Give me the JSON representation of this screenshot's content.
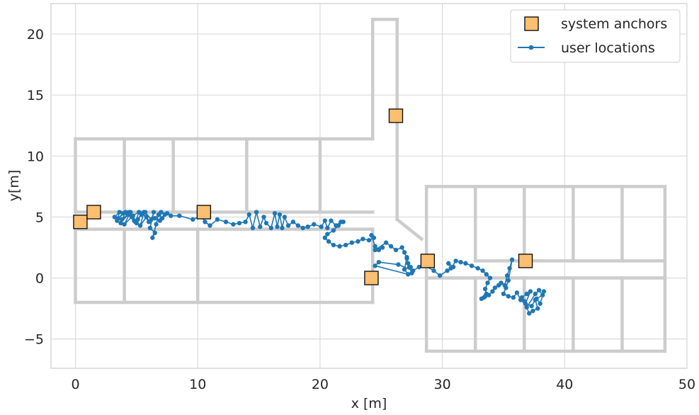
{
  "chart_data": {
    "type": "scatter",
    "xlabel": "x [m]",
    "ylabel": "y[m]",
    "xlim": [
      -2,
      50
    ],
    "ylim": [
      -7.4,
      22.5
    ],
    "xticks": [
      0,
      10,
      20,
      30,
      40,
      50
    ],
    "yticks": [
      -5,
      0,
      5,
      10,
      15,
      20
    ],
    "xtick_labels": [
      "0",
      "10",
      "20",
      "30",
      "40",
      "50"
    ],
    "ytick_labels": [
      "−5",
      "0",
      "5",
      "10",
      "15",
      "20"
    ],
    "grid": true,
    "legend": {
      "position": "top-right",
      "entries": [
        {
          "label": "system anchors",
          "marker": "square",
          "color": "#fdbf6f"
        },
        {
          "label": "user locations",
          "marker": "line-dot",
          "color": "#1f77b4"
        }
      ]
    },
    "colors": {
      "anchors": "#fdbf6f",
      "anchor_edge": "#111111",
      "user": "#1f77b4",
      "walls": "#cccccc",
      "grid": "#dadada"
    },
    "walls": [
      [
        [
          0,
          11.4
        ],
        [
          24.3,
          11.4
        ]
      ],
      [
        [
          24.3,
          11.4
        ],
        [
          24.3,
          21.2
        ]
      ],
      [
        [
          24.3,
          21.2
        ],
        [
          26.3,
          21.2
        ]
      ],
      [
        [
          26.3,
          21.2
        ],
        [
          26.3,
          4.8
        ]
      ],
      [
        [
          26.3,
          4.8
        ],
        [
          28.3,
          3.2
        ]
      ],
      [
        [
          0,
          11.4
        ],
        [
          0,
          5.4
        ]
      ],
      [
        [
          0,
          5.4
        ],
        [
          24.3,
          5.4
        ]
      ],
      [
        [
          4,
          11.4
        ],
        [
          4,
          5.4
        ]
      ],
      [
        [
          8,
          11.4
        ],
        [
          8,
          5.4
        ]
      ],
      [
        [
          14,
          11.4
        ],
        [
          14,
          5.4
        ]
      ],
      [
        [
          20,
          11.4
        ],
        [
          20,
          5.4
        ]
      ],
      [
        [
          0,
          4
        ],
        [
          24.3,
          4
        ]
      ],
      [
        [
          24.3,
          4
        ],
        [
          24.3,
          -2
        ]
      ],
      [
        [
          0,
          4
        ],
        [
          0,
          -2
        ]
      ],
      [
        [
          0,
          -2
        ],
        [
          24.3,
          -2
        ]
      ],
      [
        [
          4,
          4
        ],
        [
          4,
          -2
        ]
      ],
      [
        [
          10,
          4
        ],
        [
          10,
          -2
        ]
      ],
      [
        [
          28.7,
          7.5
        ],
        [
          48.2,
          7.5
        ]
      ],
      [
        [
          28.7,
          7.5
        ],
        [
          28.7,
          -6
        ]
      ],
      [
        [
          48.2,
          7.5
        ],
        [
          48.2,
          -6
        ]
      ],
      [
        [
          28.7,
          -6
        ],
        [
          48.2,
          -6
        ]
      ],
      [
        [
          32.7,
          7.5
        ],
        [
          32.7,
          1.4
        ]
      ],
      [
        [
          36.7,
          7.5
        ],
        [
          36.7,
          1.4
        ]
      ],
      [
        [
          40.7,
          7.5
        ],
        [
          40.7,
          1.4
        ]
      ],
      [
        [
          44.7,
          7.5
        ],
        [
          44.7,
          1.4
        ]
      ],
      [
        [
          32.7,
          1.4
        ],
        [
          48.2,
          1.4
        ]
      ],
      [
        [
          28.7,
          0
        ],
        [
          48.2,
          0
        ]
      ],
      [
        [
          32.7,
          0
        ],
        [
          32.7,
          -6
        ]
      ],
      [
        [
          36.7,
          0
        ],
        [
          36.7,
          -6
        ]
      ],
      [
        [
          40.7,
          0
        ],
        [
          40.7,
          -6
        ]
      ],
      [
        [
          44.7,
          0
        ],
        [
          44.7,
          -6
        ]
      ]
    ],
    "anchors": [
      {
        "x": 0.4,
        "y": 4.6
      },
      {
        "x": 1.5,
        "y": 5.4
      },
      {
        "x": 10.5,
        "y": 5.4
      },
      {
        "x": 26.2,
        "y": 13.3
      },
      {
        "x": 24.2,
        "y": 0.0
      },
      {
        "x": 28.8,
        "y": 1.4
      },
      {
        "x": 36.8,
        "y": 1.4
      }
    ],
    "user_locations": [
      [
        3.2,
        5.0
      ],
      [
        3.6,
        5.4
      ],
      [
        3.4,
        4.7
      ],
      [
        3.9,
        5.3
      ],
      [
        3.5,
        4.9
      ],
      [
        4.1,
        5.4
      ],
      [
        3.7,
        4.5
      ],
      [
        4.3,
        5.2
      ],
      [
        3.8,
        4.8
      ],
      [
        4.5,
        5.4
      ],
      [
        4.0,
        4.4
      ],
      [
        4.6,
        5.0
      ],
      [
        4.2,
        5.3
      ],
      [
        4.8,
        4.7
      ],
      [
        4.4,
        5.4
      ],
      [
        5.0,
        4.5
      ],
      [
        4.7,
        5.1
      ],
      [
        5.2,
        5.4
      ],
      [
        4.9,
        4.6
      ],
      [
        5.4,
        5.2
      ],
      [
        5.1,
        4.8
      ],
      [
        5.6,
        5.4
      ],
      [
        5.3,
        4.3
      ],
      [
        5.8,
        5.0
      ],
      [
        5.5,
        5.3
      ],
      [
        6.0,
        4.6
      ],
      [
        5.7,
        5.4
      ],
      [
        6.2,
        4.8
      ],
      [
        6.4,
        5.4
      ],
      [
        6.1,
        4.1
      ],
      [
        6.5,
        3.7
      ],
      [
        6.3,
        3.3
      ],
      [
        6.6,
        4.4
      ],
      [
        6.8,
        5.2
      ],
      [
        6.5,
        4.9
      ],
      [
        7.0,
        5.4
      ],
      [
        6.9,
        4.7
      ],
      [
        7.3,
        5.2
      ],
      [
        7.1,
        4.9
      ],
      [
        7.5,
        5.3
      ],
      [
        7.8,
        5.1
      ],
      [
        8.5,
        5.1
      ],
      [
        9.6,
        4.8
      ],
      [
        10.3,
        5.1
      ],
      [
        10.6,
        4.6
      ],
      [
        11.0,
        4.3
      ],
      [
        11.6,
        4.8
      ],
      [
        12.3,
        4.6
      ],
      [
        12.9,
        4.4
      ],
      [
        13.4,
        4.5
      ],
      [
        13.9,
        4.6
      ],
      [
        14.2,
        5.2
      ],
      [
        14.5,
        4.1
      ],
      [
        14.8,
        5.4
      ],
      [
        15.1,
        4.2
      ],
      [
        15.4,
        5.0
      ],
      [
        15.6,
        4.5
      ],
      [
        16.0,
        4.1
      ],
      [
        16.3,
        5.3
      ],
      [
        16.5,
        4.2
      ],
      [
        16.7,
        5.2
      ],
      [
        16.9,
        4.1
      ],
      [
        17.1,
        5.0
      ],
      [
        17.4,
        4.3
      ],
      [
        17.8,
        4.6
      ],
      [
        18.2,
        4.3
      ],
      [
        18.6,
        4.1
      ],
      [
        19.0,
        4.2
      ],
      [
        19.5,
        4.4
      ],
      [
        20.1,
        4.2
      ],
      [
        20.4,
        4.7
      ],
      [
        20.6,
        4.1
      ],
      [
        20.9,
        4.7
      ],
      [
        21.3,
        4.3
      ],
      [
        21.7,
        4.6
      ],
      [
        21.9,
        4.6
      ],
      [
        21.5,
        4.3
      ],
      [
        21.1,
        3.9
      ],
      [
        20.6,
        3.6
      ],
      [
        20.4,
        3.3
      ],
      [
        20.7,
        3.0
      ],
      [
        21.1,
        2.7
      ],
      [
        21.6,
        2.6
      ],
      [
        22.1,
        2.7
      ],
      [
        22.6,
        2.9
      ],
      [
        23.1,
        3.0
      ],
      [
        23.5,
        3.2
      ],
      [
        24.0,
        3.1
      ],
      [
        24.4,
        3.3
      ],
      [
        24.2,
        3.5
      ],
      [
        24.5,
        2.6
      ],
      [
        24.8,
        2.3
      ],
      [
        25.1,
        2.5
      ],
      [
        24.5,
        2.3
      ],
      [
        25.4,
        2.9
      ],
      [
        25.8,
        2.6
      ],
      [
        26.2,
        2.3
      ],
      [
        26.7,
        2.5
      ],
      [
        26.9,
        2.1
      ],
      [
        27.1,
        1.6
      ],
      [
        27.3,
        0.9
      ],
      [
        27.5,
        0.4
      ],
      [
        27.4,
        0.9
      ],
      [
        27.2,
        1.2
      ],
      [
        27.1,
        1.7
      ],
      [
        26.9,
        0.7
      ],
      [
        27.2,
        0.3
      ],
      [
        24.5,
        1.0
      ],
      [
        24.8,
        1.3
      ],
      [
        26.4,
        1.1
      ],
      [
        27.6,
        0.6
      ],
      [
        28.1,
        0.9
      ],
      [
        28.6,
        1.0
      ],
      [
        29.3,
        0.6
      ],
      [
        29.8,
        0.2
      ],
      [
        30.4,
        0.6
      ],
      [
        30.9,
        0.9
      ],
      [
        30.5,
        1.2
      ],
      [
        30.7,
        0.8
      ],
      [
        31.1,
        1.4
      ],
      [
        31.5,
        1.3
      ],
      [
        31.9,
        1.2
      ],
      [
        32.4,
        1.0
      ],
      [
        32.9,
        0.8
      ],
      [
        33.3,
        0.6
      ],
      [
        33.6,
        0.3
      ],
      [
        33.9,
        0.0
      ],
      [
        33.7,
        -0.4
      ],
      [
        33.5,
        -0.9
      ],
      [
        33.6,
        -1.3
      ],
      [
        33.4,
        -1.6
      ],
      [
        33.2,
        -1.7
      ],
      [
        33.5,
        -1.5
      ],
      [
        33.8,
        -1.4
      ],
      [
        34.1,
        -1.1
      ],
      [
        34.3,
        -0.8
      ],
      [
        34.6,
        -0.6
      ],
      [
        34.8,
        -0.4
      ],
      [
        35.1,
        -0.6
      ],
      [
        35.3,
        0.2
      ],
      [
        35.5,
        0.8
      ],
      [
        35.7,
        1.5
      ],
      [
        35.4,
        -0.2
      ],
      [
        35.2,
        -0.8
      ],
      [
        35.0,
        -1.3
      ],
      [
        35.4,
        -1.5
      ],
      [
        35.8,
        -1.6
      ],
      [
        36.1,
        -1.2
      ],
      [
        36.4,
        -1.8
      ],
      [
        36.7,
        -1.9
      ],
      [
        36.5,
        -1.6
      ],
      [
        36.9,
        -1.3
      ],
      [
        37.2,
        -1.1
      ],
      [
        36.8,
        -2.1
      ],
      [
        37.3,
        -2.3
      ],
      [
        37.6,
        -1.8
      ],
      [
        37.8,
        -2.5
      ],
      [
        37.4,
        -2.7
      ],
      [
        37.1,
        -2.9
      ],
      [
        36.9,
        -2.4
      ],
      [
        37.6,
        -1.3
      ],
      [
        37.9,
        -1.0
      ],
      [
        38.2,
        -1.4
      ],
      [
        37.7,
        -1.7
      ],
      [
        38.0,
        -2.1
      ],
      [
        38.3,
        -1.1
      ]
    ]
  }
}
